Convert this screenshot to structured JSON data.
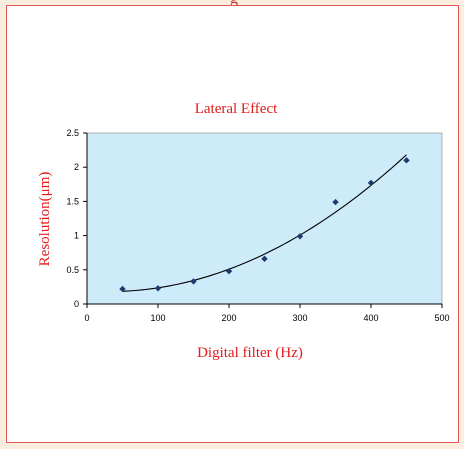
{
  "header_fragment": "g",
  "colors": {
    "page_bg": "#fbeede",
    "panel_border": "#e35454",
    "plot_bg": "#cdebf8",
    "title_color": "#e31a1a",
    "marker_color": "#1f3a6e",
    "trend_color": "#000000"
  },
  "chart_data": {
    "type": "scatter",
    "title": "Lateral Effect",
    "xlabel": "Digital filter (Hz)",
    "ylabel": "Resolution(μm)",
    "xlim": [
      0,
      500
    ],
    "ylim": [
      0,
      2.5
    ],
    "x_ticks": [
      0,
      100,
      200,
      300,
      400,
      500
    ],
    "y_ticks": [
      0,
      0.5,
      1,
      1.5,
      2,
      2.5
    ],
    "x_tick_labels": [
      "0",
      "100",
      "200",
      "300",
      "400",
      "500"
    ],
    "y_tick_labels": [
      "0",
      "0.5",
      "1",
      "1.5",
      "2",
      "2.5"
    ],
    "grid": false,
    "series": [
      {
        "marker": "diamond",
        "x": [
          50,
          100,
          150,
          200,
          250,
          300,
          350,
          400,
          450
        ],
        "y": [
          0.22,
          0.23,
          0.33,
          0.48,
          0.66,
          0.99,
          1.49,
          1.77,
          2.1
        ]
      }
    ],
    "trendline": {
      "type": "polynomial"
    }
  }
}
